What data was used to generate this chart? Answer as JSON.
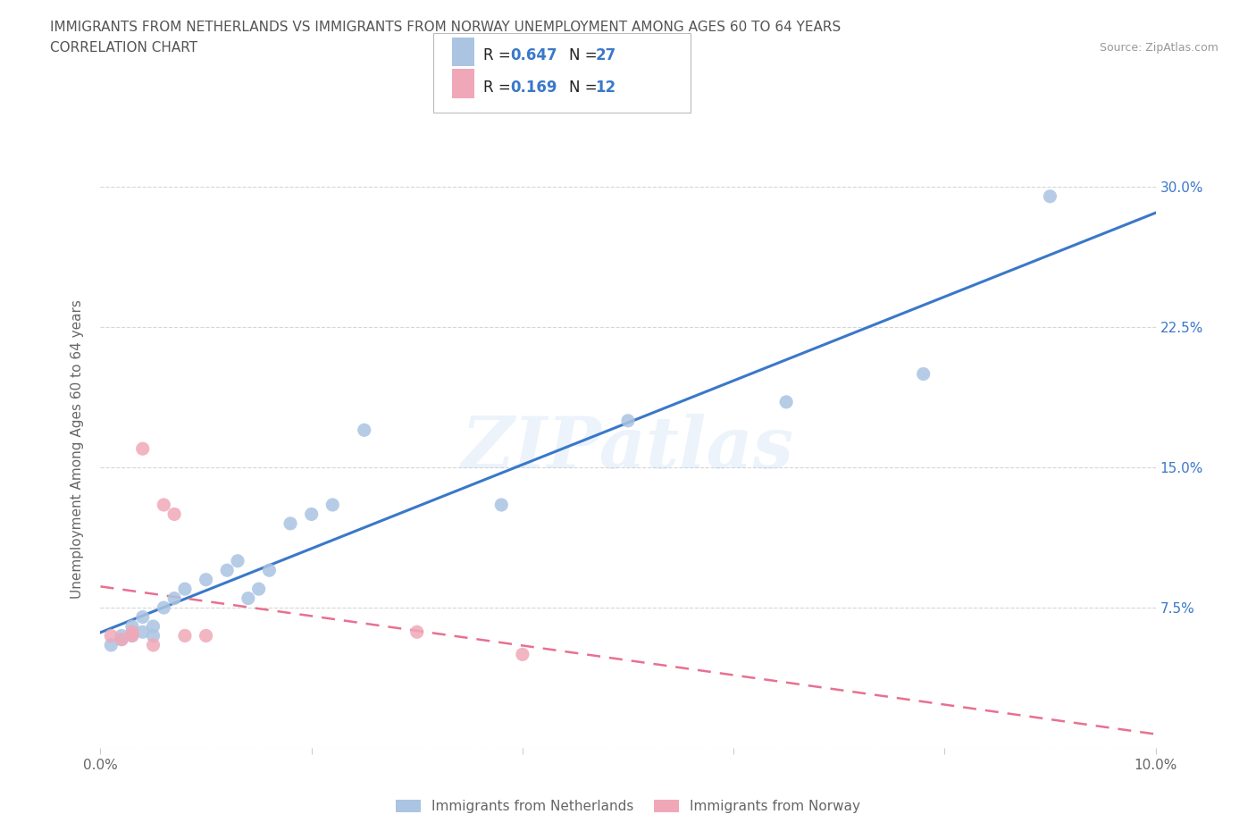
{
  "title_line1": "IMMIGRANTS FROM NETHERLANDS VS IMMIGRANTS FROM NORWAY UNEMPLOYMENT AMONG AGES 60 TO 64 YEARS",
  "title_line2": "CORRELATION CHART",
  "source_text": "Source: ZipAtlas.com",
  "ylabel": "Unemployment Among Ages 60 to 64 years",
  "xlim": [
    0.0,
    0.1
  ],
  "ylim": [
    0.0,
    0.32
  ],
  "xtick_positions": [
    0.0,
    0.02,
    0.04,
    0.06,
    0.08,
    0.1
  ],
  "xtick_labels": [
    "0.0%",
    "",
    "",
    "",
    "",
    "10.0%"
  ],
  "ytick_positions": [
    0.0,
    0.075,
    0.15,
    0.225,
    0.3
  ],
  "ytick_labels": [
    "",
    "7.5%",
    "15.0%",
    "22.5%",
    "30.0%"
  ],
  "watermark": "ZIPatlas",
  "netherlands_x": [
    0.001,
    0.002,
    0.002,
    0.003,
    0.003,
    0.004,
    0.004,
    0.005,
    0.005,
    0.006,
    0.007,
    0.008,
    0.01,
    0.012,
    0.013,
    0.014,
    0.015,
    0.016,
    0.018,
    0.02,
    0.022,
    0.025,
    0.038,
    0.05,
    0.065,
    0.078,
    0.09
  ],
  "netherlands_y": [
    0.055,
    0.06,
    0.058,
    0.06,
    0.065,
    0.062,
    0.07,
    0.06,
    0.065,
    0.075,
    0.08,
    0.085,
    0.09,
    0.095,
    0.1,
    0.08,
    0.085,
    0.095,
    0.12,
    0.125,
    0.13,
    0.17,
    0.13,
    0.175,
    0.185,
    0.2,
    0.295
  ],
  "norway_x": [
    0.001,
    0.002,
    0.003,
    0.003,
    0.004,
    0.005,
    0.006,
    0.007,
    0.008,
    0.01,
    0.03,
    0.04
  ],
  "norway_y": [
    0.06,
    0.058,
    0.06,
    0.062,
    0.16,
    0.055,
    0.13,
    0.125,
    0.06,
    0.06,
    0.062,
    0.05
  ],
  "netherlands_color": "#aac4e2",
  "norway_color": "#f0a8b8",
  "netherlands_line_color": "#3a78c9",
  "norway_line_color": "#e87090",
  "R_netherlands": 0.647,
  "N_netherlands": 27,
  "R_norway": 0.169,
  "N_norway": 12,
  "background_color": "#ffffff",
  "grid_color": "#cccccc",
  "title_color": "#555555",
  "axis_label_color": "#666666",
  "tick_color": "#666666"
}
